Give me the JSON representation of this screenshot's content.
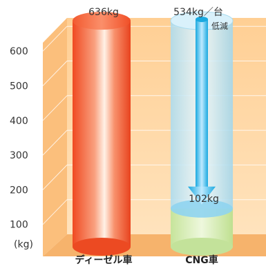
{
  "chart_data": {
    "type": "bar",
    "categories": [
      "ディーゼル車",
      "CNG車"
    ],
    "values": [
      636,
      102
    ],
    "reduction_value": 534,
    "ylim": [
      0,
      700
    ],
    "yticks": [
      100,
      200,
      300,
      400,
      500,
      600
    ],
    "ylabel": "(kg)",
    "labels": {
      "diesel_top": "636kg",
      "cng_top": "534kg／台",
      "reduction": "低減",
      "cng_value": "102kg"
    },
    "colors": {
      "floor": "#fbc384",
      "wall": "#ffd9a6",
      "wall_edge": "#f4a958",
      "grid": "#ffffff",
      "diesel": "#f4512a",
      "diesel_highlight": "#ffe8d9",
      "cng_body": "#9ed8ef",
      "cng_green": "#cde8a6",
      "arrow": "#27b8ea"
    }
  }
}
